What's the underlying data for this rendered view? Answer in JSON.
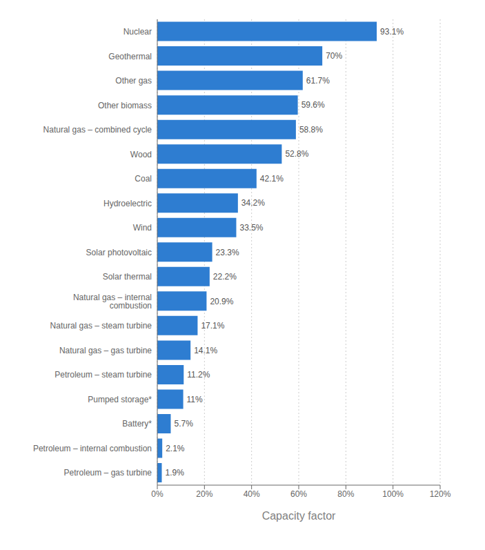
{
  "chart_data": {
    "type": "bar",
    "orientation": "horizontal",
    "xlabel": "Capacity factor",
    "categories": [
      "Petroleum – gas turbine",
      "Petroleum – internal combustion",
      "Battery*",
      "Pumped storage*",
      "Petroleum – steam turbine",
      "Natural gas – gas turbine",
      "Natural gas – steam turbine",
      "Natural gas – internal combustion",
      "Solar thermal",
      "Solar photovoltaic",
      "Wind",
      "Hydroelectric",
      "Coal",
      "Wood",
      "Natural gas – combined cycle",
      "Other biomass",
      "Other gas",
      "Geothermal",
      "Nuclear"
    ],
    "values": [
      1.9,
      2.1,
      5.7,
      11.0,
      11.2,
      14.1,
      17.1,
      20.9,
      22.2,
      23.3,
      33.5,
      34.2,
      42.1,
      52.8,
      58.8,
      59.6,
      61.7,
      70.0,
      93.1
    ],
    "value_labels": [
      "1.9%",
      "2.1%",
      "5.7%",
      "11%",
      "11.2%",
      "14.1%",
      "17.1%",
      "20.9%",
      "22.2%",
      "23.3%",
      "33.5%",
      "34.2%",
      "42.1%",
      "52.8%",
      "58.8%",
      "59.6%",
      "61.7%",
      "70%",
      "93.1%"
    ],
    "data_labels": true,
    "color": "#2e7dd1",
    "xlim": [
      0,
      120
    ],
    "xticks": [
      {
        "value": 0,
        "label": "0%"
      },
      {
        "value": 20,
        "label": "20%"
      },
      {
        "value": 40,
        "label": "40%"
      },
      {
        "value": 60,
        "label": "60%"
      },
      {
        "value": 80,
        "label": "80%"
      },
      {
        "value": 100,
        "label": "100%"
      },
      {
        "value": 120,
        "label": "120%"
      }
    ],
    "grid": true
  }
}
